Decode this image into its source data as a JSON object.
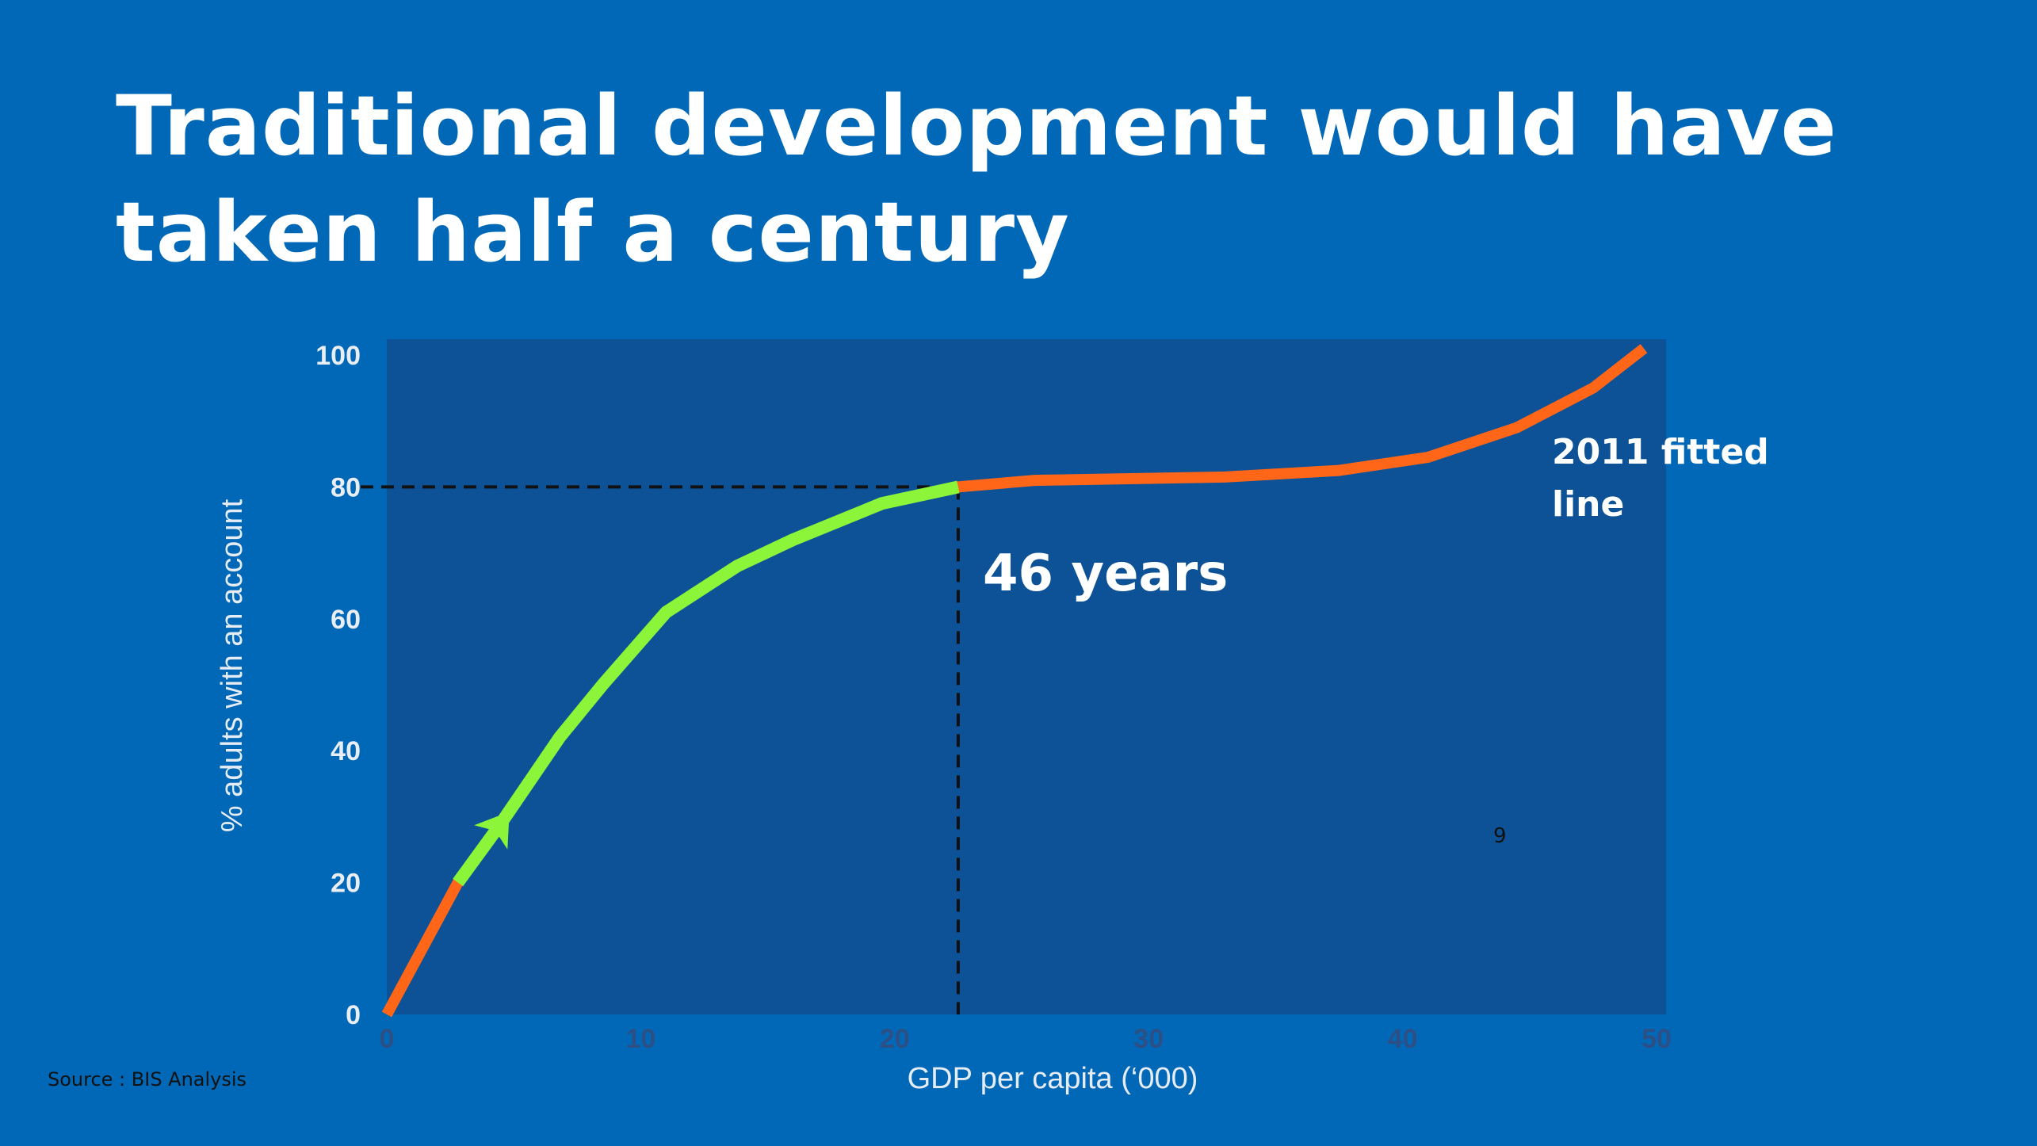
{
  "slide": {
    "title": "Traditional development would have taken half a century",
    "source": "Source : BIS Analysis",
    "page_number": "9"
  },
  "colors": {
    "background": "#0168b7",
    "plot_background": "#0d5296",
    "fitted_line": "#ff6617",
    "highlight_segment": "#8cf53a",
    "reference_lines": "#111111"
  },
  "chart_data": {
    "type": "line",
    "xlabel": "GDP per capita (‘000)",
    "ylabel": "% adults with an account",
    "xlim": [
      0,
      50
    ],
    "ylim": [
      0,
      100
    ],
    "xticks": [
      0,
      10,
      20,
      30,
      40,
      50
    ],
    "yticks": [
      0,
      20,
      40,
      60,
      80,
      100
    ],
    "grid": false,
    "series": [
      {
        "name": "2011 fitted line",
        "x": [
          0,
          2.8,
          4.5,
          6.8,
          8.5,
          11,
          13.8,
          16,
          19.5,
          22.5,
          25.5,
          33,
          37.5,
          41,
          44.5,
          47.5,
          49.5
        ],
        "y": [
          0,
          20,
          29,
          42,
          50,
          61,
          68,
          72,
          77.5,
          80,
          81,
          81.5,
          82.5,
          84.5,
          89,
          95,
          101
        ]
      }
    ],
    "highlight": {
      "x_from": 2.8,
      "x_to": 22.5,
      "arrow_at_x": 4.5
    },
    "reference": {
      "x": 22.5,
      "y": 80
    },
    "annotations": {
      "years": "46 years",
      "line_label": "2011 fitted line"
    }
  }
}
